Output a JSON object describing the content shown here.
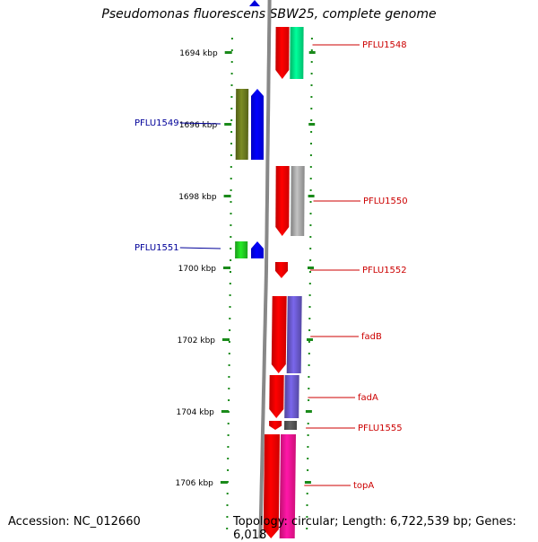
{
  "title": "Pseudomonas fluorescens SBW25, complete genome",
  "footer": {
    "accession": "Accession: NC_012660",
    "summary": "Topology: circular; Length: 6,722,539 bp; Genes: 6,018"
  },
  "colors": {
    "tick": "#1a8a1a",
    "backbone": "#888888",
    "forward_label": "#cc0000",
    "reverse_label": "#000099",
    "nav_arrow": "#0000dd"
  },
  "ticks": [
    {
      "label": "1694 kbp"
    },
    {
      "label": "1696 kbp"
    },
    {
      "label": "1698 kbp"
    },
    {
      "label": "1700 kbp"
    },
    {
      "label": "1702 kbp"
    },
    {
      "label": "1704 kbp"
    },
    {
      "label": "1706 kbp"
    }
  ],
  "genes": [
    {
      "label": "PFLU1548",
      "strand": "+",
      "color": "#00ee88"
    },
    {
      "label": "PFLU1549",
      "strand": "-",
      "color": "#6b7a1f"
    },
    {
      "label": "PFLU1550",
      "strand": "+",
      "color": "#aaaaaa"
    },
    {
      "label": "PFLU1551",
      "strand": "-",
      "color": "#22cc22"
    },
    {
      "label": "PFLU1552",
      "strand": "+",
      "color": "#ff0000"
    },
    {
      "label": "fadB",
      "strand": "+",
      "color": "#6a5acd"
    },
    {
      "label": "fadA",
      "strand": "+",
      "color": "#6a5acd"
    },
    {
      "label": "PFLU1555",
      "strand": "+",
      "color": "#555555"
    },
    {
      "label": "topA",
      "strand": "+",
      "color": "#ff1493"
    }
  ]
}
